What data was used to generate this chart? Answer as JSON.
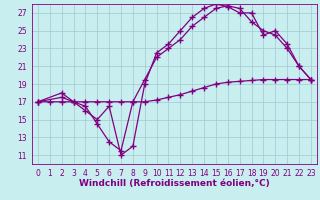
{
  "background_color": "#c8eef0",
  "line_color": "#800080",
  "grid_color": "#a0c8d0",
  "xlabel": "Windchill (Refroidissement éolien,°C)",
  "xlabel_color": "#800080",
  "xlim": [
    -0.5,
    23.5
  ],
  "ylim": [
    10,
    28
  ],
  "yticks": [
    11,
    13,
    15,
    17,
    19,
    21,
    23,
    25,
    27
  ],
  "xticks": [
    0,
    1,
    2,
    3,
    4,
    5,
    6,
    7,
    8,
    9,
    10,
    11,
    12,
    13,
    14,
    15,
    16,
    17,
    18,
    19,
    20,
    21,
    22,
    23
  ],
  "curve_flat_x": [
    0,
    1,
    2,
    3,
    4,
    5,
    6,
    7,
    8,
    9,
    10,
    11,
    12,
    13,
    14,
    15,
    16,
    17,
    18,
    19,
    20,
    21,
    22,
    23
  ],
  "curve_flat_y": [
    17,
    17,
    17,
    17,
    17,
    17,
    17,
    17,
    17,
    17,
    17.2,
    17.5,
    17.8,
    18.2,
    18.6,
    19,
    19.2,
    19.3,
    19.4,
    19.5,
    19.5,
    19.5,
    19.5,
    19.5
  ],
  "curve_smooth_x": [
    0,
    2,
    3,
    4,
    5,
    6,
    7,
    8,
    9,
    10,
    11,
    12,
    13,
    14,
    15,
    16,
    17,
    18,
    19,
    20,
    21,
    22,
    23
  ],
  "curve_smooth_y": [
    17,
    17.5,
    17,
    16.5,
    14.5,
    12.5,
    11.5,
    17,
    19.5,
    22,
    23,
    24,
    25.5,
    26.5,
    27.5,
    27.8,
    27.5,
    26,
    25,
    24.5,
    23,
    21,
    19.5
  ],
  "curve_jagged_x": [
    0,
    2,
    3,
    4,
    5,
    6,
    7,
    8,
    9,
    10,
    11,
    12,
    13,
    14,
    15,
    16,
    17,
    18,
    19,
    20,
    21,
    22,
    23
  ],
  "curve_jagged_y": [
    17,
    18,
    17,
    16,
    15,
    16.5,
    11,
    12,
    19,
    22.5,
    23.5,
    25,
    26.5,
    27.5,
    28,
    27.7,
    27,
    27,
    24.5,
    25,
    23.5,
    21,
    19.5
  ],
  "marker": "+",
  "markersize": 4,
  "linewidth": 0.9,
  "xlabel_fontsize": 6.5,
  "tick_fontsize": 5.5
}
